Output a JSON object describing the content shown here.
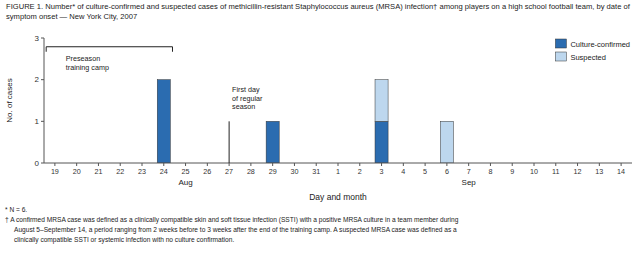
{
  "chart_data": {
    "type": "bar",
    "stacked": true,
    "title": "FIGURE 1. Number* of culture-confirmed and suspected cases of methicillin-resistant Staphylococcus aureus (MRSA) infection† among players on a high school football team, by date of symptom onset — New York City, 2007",
    "xlabel": "Day and month",
    "ylabel": "No. of cases",
    "categories": [
      "19",
      "20",
      "21",
      "22",
      "23",
      "24",
      "25",
      "26",
      "27",
      "28",
      "29",
      "30",
      "31",
      "1",
      "2",
      "3",
      "4",
      "5",
      "6",
      "7",
      "8",
      "9",
      "10",
      "11",
      "12",
      "13",
      "14"
    ],
    "series": [
      {
        "name": "Culture-confirmed",
        "color": "#2B6CB0",
        "values": [
          0,
          0,
          0,
          0,
          0,
          2,
          0,
          0,
          0,
          0,
          1,
          0,
          0,
          0,
          0,
          1,
          0,
          0,
          0,
          0,
          0,
          0,
          0,
          0,
          0,
          0,
          0
        ]
      },
      {
        "name": "Suspected",
        "color": "#BDD7EE",
        "values": [
          0,
          0,
          0,
          0,
          0,
          0,
          0,
          0,
          0,
          0,
          0,
          0,
          0,
          0,
          0,
          1,
          0,
          0,
          1,
          0,
          0,
          0,
          0,
          0,
          0,
          0,
          0
        ]
      }
    ],
    "ylim": [
      0,
      3
    ],
    "yticks": [
      0,
      1,
      2,
      3
    ],
    "grid": false,
    "legend": "upper right",
    "annotations": [
      "Preseason\ntraining camp",
      "First day\nof regular\nseason",
      "Aug",
      "Sep"
    ],
    "footnotes": [
      "* N = 6.",
      "† A confirmed MRSA case was defined as a clinically compatible skin and soft tissue infection (SSTI) with a positive MRSA culture in a team member during",
      "August 5–September 14, a period ranging from 2 weeks before to 3 weeks after the end of the training camp. A suspected MRSA case was defined as a",
      "clinically compatible SSTI or systemic infection with no culture confirmation."
    ]
  }
}
